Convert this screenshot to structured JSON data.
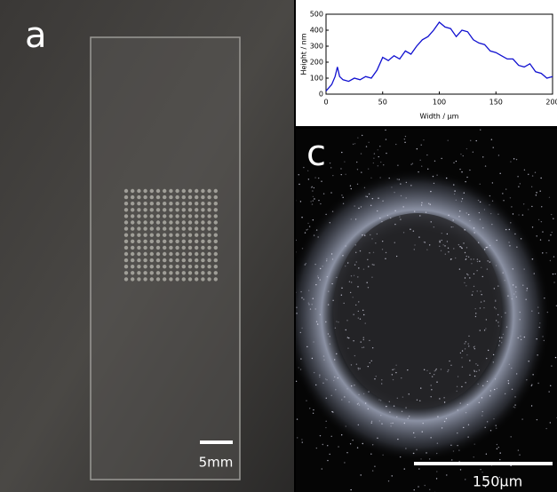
{
  "panel_a": {
    "label": "a",
    "scale_bar": "5mm"
  },
  "chart_data": {
    "type": "line",
    "x_label": "Width / µm",
    "y_label": "Height / nm",
    "x": [
      0,
      5,
      8,
      10,
      12,
      15,
      20,
      25,
      30,
      35,
      40,
      45,
      50,
      55,
      60,
      65,
      70,
      75,
      80,
      85,
      90,
      95,
      100,
      105,
      110,
      115,
      120,
      125,
      130,
      135,
      140,
      145,
      150,
      155,
      160,
      165,
      170,
      175,
      180,
      185,
      190,
      195,
      200
    ],
    "series": [
      {
        "color": "#1010d0",
        "values": [
          20,
          60,
          110,
          170,
          110,
          90,
          80,
          100,
          90,
          110,
          100,
          150,
          230,
          210,
          240,
          220,
          270,
          250,
          300,
          340,
          360,
          400,
          450,
          420,
          410,
          360,
          400,
          390,
          340,
          320,
          310,
          270,
          260,
          240,
          220,
          220,
          180,
          170,
          190,
          140,
          130,
          100,
          110
        ]
      }
    ],
    "xlim": [
      0,
      200
    ],
    "xticks": [
      0,
      50,
      100,
      150,
      200
    ],
    "ylim": [
      0,
      500
    ],
    "yticks": [
      0,
      100,
      200,
      300,
      400,
      500
    ]
  },
  "panel_c": {
    "label": "c",
    "scale_bar": "150µm"
  }
}
